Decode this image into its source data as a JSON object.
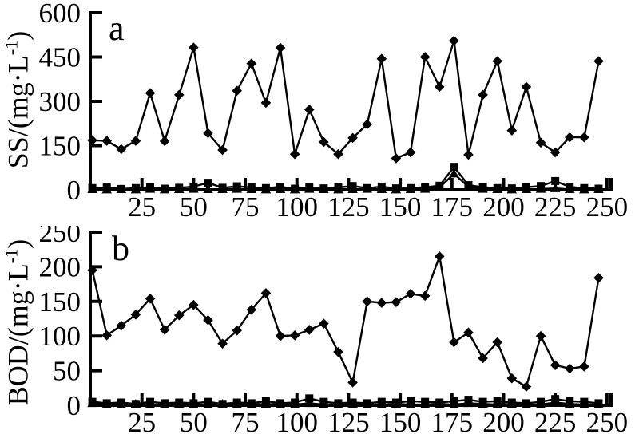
{
  "figure": {
    "background": "#ffffff",
    "ink": "#000000"
  },
  "chart_data": [
    {
      "panel_label": "a",
      "type": "line",
      "title": "",
      "xlabel": "",
      "ylabel": {
        "prefix": "SS/(mg·L",
        "sup": "-1",
        "suffix": ")"
      },
      "ylim": [
        0,
        600
      ],
      "yticks": [
        0,
        150,
        300,
        450,
        600
      ],
      "xlim": [
        0,
        252
      ],
      "xticks": [
        25,
        50,
        75,
        100,
        125,
        150,
        175,
        200,
        225,
        250
      ],
      "grid": false,
      "legend": null,
      "x": [
        1,
        8,
        15,
        22,
        29,
        36,
        43,
        50,
        57,
        64,
        71,
        78,
        85,
        92,
        99,
        106,
        113,
        120,
        127,
        134,
        141,
        148,
        155,
        162,
        169,
        176,
        183,
        190,
        197,
        204,
        211,
        218,
        225,
        232,
        239,
        246
      ],
      "series": [
        {
          "name": "diamond",
          "marker": "diamond",
          "values": [
            168,
            166,
            138,
            166,
            328,
            165,
            322,
            482,
            192,
            135,
            336,
            428,
            295,
            481,
            121,
            272,
            162,
            121,
            176,
            222,
            444,
            107,
            127,
            450,
            349,
            505,
            119,
            322,
            436,
            201,
            349,
            160,
            127,
            178,
            178,
            436
          ]
        },
        {
          "name": "square",
          "marker": "square",
          "values": [
            6,
            8,
            3,
            6,
            9,
            4,
            7,
            11,
            24,
            7,
            12,
            8,
            6,
            10,
            4,
            8,
            5,
            8,
            13,
            6,
            11,
            5,
            6,
            9,
            14,
            78,
            16,
            9,
            6,
            5,
            9,
            13,
            30,
            10,
            6,
            4
          ]
        },
        {
          "name": "triangle",
          "marker": "triangle",
          "values": [
            2,
            1,
            2,
            1,
            3,
            1,
            2,
            3,
            2,
            2,
            3,
            2,
            1,
            2,
            1,
            3,
            2,
            1,
            2,
            3,
            2,
            1,
            2,
            3,
            8,
            55,
            10,
            3,
            2,
            1,
            2,
            3,
            5,
            2,
            1,
            2
          ]
        }
      ]
    },
    {
      "panel_label": "b",
      "type": "line",
      "title": "",
      "xlabel": "",
      "ylabel": {
        "prefix": "BOD/(mg·L",
        "sup": "-1",
        "suffix": ")"
      },
      "ylim": [
        0,
        250
      ],
      "yticks": [
        0,
        50,
        100,
        150,
        200,
        250
      ],
      "xlim": [
        0,
        252
      ],
      "xticks": [
        25,
        50,
        75,
        100,
        125,
        150,
        175,
        200,
        225,
        250
      ],
      "grid": false,
      "legend": null,
      "x": [
        1,
        8,
        15,
        22,
        29,
        36,
        43,
        50,
        57,
        64,
        71,
        78,
        85,
        92,
        99,
        106,
        113,
        120,
        127,
        134,
        141,
        148,
        155,
        162,
        169,
        176,
        183,
        190,
        197,
        204,
        211,
        218,
        225,
        232,
        239,
        246
      ],
      "series": [
        {
          "name": "diamond",
          "marker": "diamond",
          "values": [
            195,
            101,
            115,
            131,
            154,
            109,
            130,
            145,
            123,
            89,
            108,
            138,
            162,
            100,
            101,
            109,
            118,
            77,
            33,
            150,
            148,
            149,
            161,
            158,
            215,
            91,
            105,
            68,
            91,
            39,
            27,
            100,
            58,
            53,
            56,
            184
          ]
        },
        {
          "name": "square",
          "marker": "square",
          "values": [
            5,
            3,
            4,
            2,
            5,
            3,
            4,
            3,
            5,
            2,
            4,
            3,
            6,
            3,
            4,
            10,
            5,
            3,
            4,
            3,
            5,
            4,
            6,
            5,
            4,
            6,
            8,
            5,
            6,
            4,
            3,
            5,
            9,
            6,
            5,
            3
          ]
        },
        {
          "name": "triangle",
          "marker": "triangle",
          "values": [
            3,
            1,
            1,
            2,
            1,
            1,
            2,
            1,
            1,
            2,
            1,
            1,
            2,
            1,
            1,
            3,
            1,
            1,
            2,
            1,
            1,
            2,
            1,
            1,
            2,
            1,
            3,
            2,
            1,
            2,
            1,
            1,
            4,
            2,
            1,
            1
          ]
        }
      ]
    }
  ]
}
